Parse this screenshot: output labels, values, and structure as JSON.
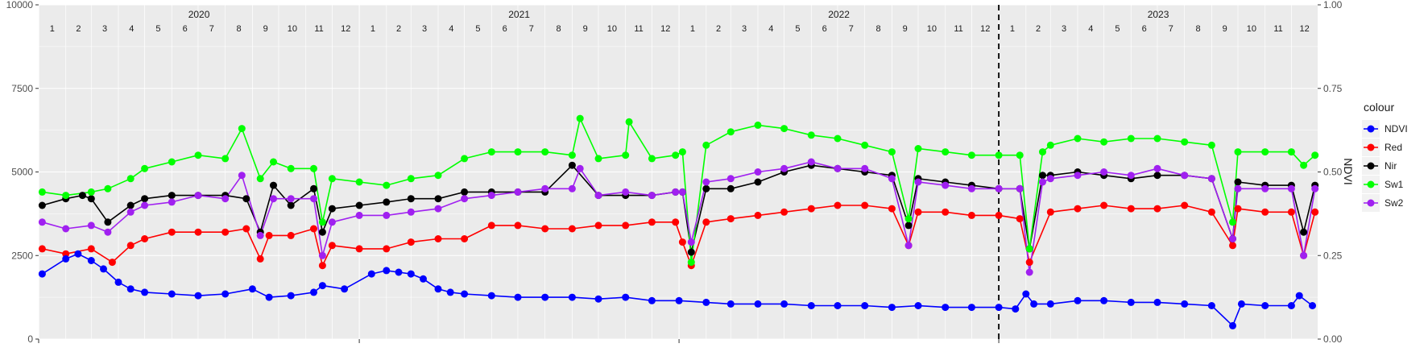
{
  "chart_data": {
    "type": "line",
    "xlabel": "",
    "ylabel": "",
    "y2label": "NDVI",
    "grid": true,
    "legend": {
      "title": "colour",
      "placement": "right"
    },
    "xlim": [
      "2020-01-01",
      "2023-12-31"
    ],
    "ylim": [
      0,
      10000
    ],
    "y2lim": [
      0.0,
      1.0
    ],
    "y_ticks": [
      "0",
      "2500",
      "5000",
      "7500",
      "10000"
    ],
    "y2_ticks": [
      "0.00",
      "0.25",
      "0.50",
      "0.75",
      "1.00"
    ],
    "years": [
      "2020",
      "2021",
      "2022",
      "2023"
    ],
    "months": [
      "1",
      "2",
      "3",
      "4",
      "5",
      "6",
      "7",
      "8",
      "9",
      "10",
      "11",
      "12"
    ],
    "vline_date": "2023-01-01",
    "colors": {
      "NDVI": "#0000ff",
      "Red": "#ff0000",
      "Nir": "#000000",
      "Sw1": "#00ff00",
      "Sw2": "#a020f0"
    },
    "series": [
      {
        "name": "NDVI",
        "axis": "y2",
        "x": [
          "2020-01-05",
          "2020-02-01",
          "2020-02-15",
          "2020-03-01",
          "2020-03-15",
          "2020-04-01",
          "2020-04-15",
          "2020-05-01",
          "2020-06-01",
          "2020-07-01",
          "2020-08-01",
          "2020-09-01",
          "2020-09-20",
          "2020-10-15",
          "2020-11-10",
          "2020-11-20",
          "2020-12-15",
          "2021-01-15",
          "2021-02-01",
          "2021-02-15",
          "2021-03-01",
          "2021-03-15",
          "2021-04-01",
          "2021-04-15",
          "2021-05-01",
          "2021-06-01",
          "2021-07-01",
          "2021-08-01",
          "2021-09-01",
          "2021-10-01",
          "2021-11-01",
          "2021-12-01",
          "2022-01-01",
          "2022-02-01",
          "2022-03-01",
          "2022-04-01",
          "2022-05-01",
          "2022-06-01",
          "2022-07-01",
          "2022-08-01",
          "2022-09-01",
          "2022-10-01",
          "2022-11-01",
          "2022-12-01",
          "2023-01-01",
          "2023-01-20",
          "2023-02-01",
          "2023-02-10",
          "2023-03-01",
          "2023-04-01",
          "2023-05-01",
          "2023-06-01",
          "2023-07-01",
          "2023-08-01",
          "2023-09-01",
          "2023-09-25",
          "2023-10-05",
          "2023-11-01",
          "2023-12-01",
          "2023-12-10",
          "2023-12-25"
        ],
        "values": [
          0.195,
          0.24,
          0.255,
          0.235,
          0.21,
          0.17,
          0.15,
          0.14,
          0.135,
          0.13,
          0.135,
          0.15,
          0.125,
          0.13,
          0.14,
          0.16,
          0.15,
          0.195,
          0.205,
          0.2,
          0.195,
          0.18,
          0.15,
          0.14,
          0.135,
          0.13,
          0.125,
          0.125,
          0.125,
          0.12,
          0.125,
          0.115,
          0.115,
          0.11,
          0.105,
          0.105,
          0.105,
          0.1,
          0.1,
          0.1,
          0.095,
          0.1,
          0.095,
          0.095,
          0.095,
          0.09,
          0.135,
          0.105,
          0.105,
          0.115,
          0.115,
          0.11,
          0.11,
          0.105,
          0.1,
          0.04,
          0.105,
          0.1,
          0.1,
          0.13,
          0.1
        ]
      },
      {
        "name": "Red",
        "axis": "y",
        "x": [
          "2020-01-05",
          "2020-02-01",
          "2020-03-01",
          "2020-03-25",
          "2020-04-15",
          "2020-05-01",
          "2020-06-01",
          "2020-07-01",
          "2020-08-01",
          "2020-08-25",
          "2020-09-10",
          "2020-09-20",
          "2020-10-15",
          "2020-11-10",
          "2020-11-20",
          "2020-12-01",
          "2021-01-01",
          "2021-02-01",
          "2021-03-01",
          "2021-04-01",
          "2021-05-01",
          "2021-06-01",
          "2021-07-01",
          "2021-08-01",
          "2021-09-01",
          "2021-10-01",
          "2021-11-01",
          "2021-12-01",
          "2021-12-28",
          "2022-01-05",
          "2022-01-15",
          "2022-02-01",
          "2022-03-01",
          "2022-04-01",
          "2022-05-01",
          "2022-06-01",
          "2022-07-01",
          "2022-08-01",
          "2022-09-01",
          "2022-09-20",
          "2022-10-01",
          "2022-11-01",
          "2022-12-01",
          "2023-01-01",
          "2023-01-25",
          "2023-02-05",
          "2023-03-01",
          "2023-04-01",
          "2023-05-01",
          "2023-06-01",
          "2023-07-01",
          "2023-08-01",
          "2023-09-01",
          "2023-09-25",
          "2023-10-01",
          "2023-11-01",
          "2023-12-01",
          "2023-12-15",
          "2023-12-28"
        ],
        "values": [
          2700,
          2550,
          2700,
          2300,
          2800,
          3000,
          3200,
          3200,
          3200,
          3300,
          2400,
          3100,
          3100,
          3300,
          2200,
          2800,
          2700,
          2700,
          2900,
          3000,
          3000,
          3400,
          3400,
          3300,
          3300,
          3400,
          3400,
          3500,
          3500,
          2900,
          2200,
          3500,
          3600,
          3700,
          3800,
          3900,
          4000,
          4000,
          3900,
          2800,
          3800,
          3800,
          3700,
          3700,
          3600,
          2300,
          3800,
          3900,
          4000,
          3900,
          3900,
          4000,
          3800,
          2800,
          3900,
          3800,
          3800,
          2500,
          3800
        ]
      },
      {
        "name": "Nir",
        "axis": "y",
        "x": [
          "2020-01-05",
          "2020-02-01",
          "2020-02-20",
          "2020-03-01",
          "2020-03-20",
          "2020-04-15",
          "2020-05-01",
          "2020-06-01",
          "2020-07-01",
          "2020-08-01",
          "2020-08-25",
          "2020-09-10",
          "2020-09-25",
          "2020-10-15",
          "2020-11-10",
          "2020-11-20",
          "2020-12-01",
          "2021-01-01",
          "2021-02-01",
          "2021-03-01",
          "2021-04-01",
          "2021-05-01",
          "2021-06-01",
          "2021-07-01",
          "2021-08-01",
          "2021-09-01",
          "2021-10-01",
          "2021-11-01",
          "2021-12-01",
          "2021-12-28",
          "2022-01-05",
          "2022-01-15",
          "2022-02-01",
          "2022-03-01",
          "2022-04-01",
          "2022-05-01",
          "2022-06-01",
          "2022-07-01",
          "2022-08-01",
          "2022-09-01",
          "2022-09-20",
          "2022-10-01",
          "2022-11-01",
          "2022-12-01",
          "2023-01-01",
          "2023-01-25",
          "2023-02-05",
          "2023-02-20",
          "2023-03-01",
          "2023-04-01",
          "2023-05-01",
          "2023-06-01",
          "2023-07-01",
          "2023-08-01",
          "2023-09-01",
          "2023-09-25",
          "2023-10-01",
          "2023-11-01",
          "2023-12-01",
          "2023-12-15",
          "2023-12-28"
        ],
        "values": [
          4000,
          4200,
          4300,
          4200,
          3500,
          4000,
          4200,
          4300,
          4300,
          4300,
          4200,
          3200,
          4600,
          4000,
          4500,
          3200,
          3900,
          4000,
          4100,
          4200,
          4200,
          4400,
          4400,
          4400,
          4400,
          5200,
          4300,
          4300,
          4300,
          4400,
          4400,
          2600,
          4500,
          4500,
          4700,
          5000,
          5200,
          5100,
          5000,
          4900,
          3400,
          4800,
          4700,
          4600,
          4500,
          4500,
          2700,
          4900,
          4900,
          5000,
          4900,
          4800,
          4900,
          4900,
          4800,
          3000,
          4700,
          4600,
          4600,
          3200,
          4600
        ]
      },
      {
        "name": "Sw1",
        "axis": "y",
        "x": [
          "2020-01-05",
          "2020-02-01",
          "2020-03-01",
          "2020-03-20",
          "2020-04-15",
          "2020-05-01",
          "2020-06-01",
          "2020-07-01",
          "2020-08-01",
          "2020-08-20",
          "2020-09-10",
          "2020-09-25",
          "2020-10-15",
          "2020-11-10",
          "2020-11-20",
          "2020-12-01",
          "2021-01-01",
          "2021-02-01",
          "2021-03-01",
          "2021-04-01",
          "2021-05-01",
          "2021-06-01",
          "2021-07-01",
          "2021-08-01",
          "2021-09-01",
          "2021-09-10",
          "2021-10-01",
          "2021-11-01",
          "2021-11-05",
          "2021-12-01",
          "2021-12-28",
          "2022-01-05",
          "2022-01-15",
          "2022-02-01",
          "2022-03-01",
          "2022-04-01",
          "2022-05-01",
          "2022-06-01",
          "2022-07-01",
          "2022-08-01",
          "2022-09-01",
          "2022-09-20",
          "2022-10-01",
          "2022-11-01",
          "2022-12-01",
          "2023-01-01",
          "2023-01-25",
          "2023-02-05",
          "2023-02-20",
          "2023-03-01",
          "2023-04-01",
          "2023-05-01",
          "2023-06-01",
          "2023-07-01",
          "2023-08-01",
          "2023-09-01",
          "2023-09-25",
          "2023-10-01",
          "2023-11-01",
          "2023-12-01",
          "2023-12-15",
          "2023-12-28"
        ],
        "values": [
          4400,
          4300,
          4400,
          4500,
          4800,
          5100,
          5300,
          5500,
          5400,
          6300,
          4800,
          5300,
          5100,
          5100,
          3500,
          4800,
          4700,
          4600,
          4800,
          4900,
          5400,
          5600,
          5600,
          5600,
          5500,
          6600,
          5400,
          5500,
          6500,
          5400,
          5500,
          5600,
          2300,
          5800,
          6200,
          6400,
          6300,
          6100,
          6000,
          5800,
          5600,
          3600,
          5700,
          5600,
          5500,
          5500,
          5500,
          2700,
          5600,
          5800,
          6000,
          5900,
          6000,
          6000,
          5900,
          5800,
          3500,
          5600,
          5600,
          5600,
          5200,
          5500
        ]
      },
      {
        "name": "Sw2",
        "axis": "y",
        "x": [
          "2020-01-05",
          "2020-02-01",
          "2020-03-01",
          "2020-03-20",
          "2020-04-15",
          "2020-05-01",
          "2020-06-01",
          "2020-07-01",
          "2020-08-01",
          "2020-08-20",
          "2020-09-10",
          "2020-09-25",
          "2020-10-15",
          "2020-11-10",
          "2020-11-20",
          "2020-12-01",
          "2021-01-01",
          "2021-02-01",
          "2021-03-01",
          "2021-04-01",
          "2021-05-01",
          "2021-06-01",
          "2021-07-01",
          "2021-08-01",
          "2021-09-01",
          "2021-09-10",
          "2021-10-01",
          "2021-11-01",
          "2021-12-01",
          "2021-12-28",
          "2022-01-05",
          "2022-01-15",
          "2022-02-01",
          "2022-03-01",
          "2022-04-01",
          "2022-05-01",
          "2022-06-01",
          "2022-07-01",
          "2022-08-01",
          "2022-09-01",
          "2022-09-20",
          "2022-10-01",
          "2022-11-01",
          "2022-12-01",
          "2023-01-01",
          "2023-01-25",
          "2023-02-05",
          "2023-02-20",
          "2023-03-01",
          "2023-04-01",
          "2023-05-01",
          "2023-06-01",
          "2023-07-01",
          "2023-08-01",
          "2023-09-01",
          "2023-09-25",
          "2023-10-01",
          "2023-11-01",
          "2023-12-01",
          "2023-12-15",
          "2023-12-28"
        ],
        "values": [
          3500,
          3300,
          3400,
          3200,
          3800,
          4000,
          4100,
          4300,
          4200,
          4900,
          3100,
          4200,
          4200,
          4200,
          2500,
          3500,
          3700,
          3700,
          3800,
          3900,
          4200,
          4300,
          4400,
          4500,
          4500,
          5100,
          4300,
          4400,
          4300,
          4400,
          4400,
          2900,
          4700,
          4800,
          5000,
          5100,
          5300,
          5100,
          5100,
          4800,
          2800,
          4700,
          4600,
          4500,
          4500,
          4500,
          2000,
          4700,
          4800,
          4900,
          5000,
          4900,
          5100,
          4900,
          4800,
          3000,
          4500,
          4500,
          4500,
          2500,
          4500
        ]
      }
    ]
  }
}
